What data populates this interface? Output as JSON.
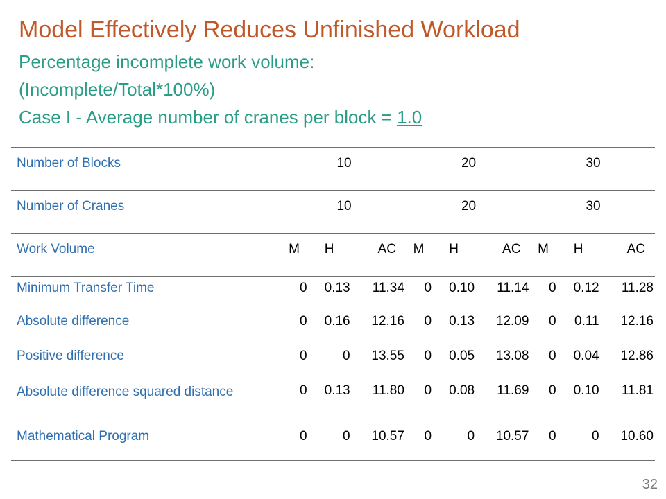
{
  "title": "Model Effectively Reduces Unfinished Workload",
  "subtitle_line1": "Percentage incomplete work volume:",
  "subtitle_line2": "(Incomplete/Total*100%)",
  "subtitle_line3_prefix": "Case I - Average number of cranes per block = ",
  "subtitle_line3_value": "1.0",
  "table": {
    "blocks_label": "Number of Blocks",
    "blocks": [
      "10",
      "20",
      "30"
    ],
    "cranes_label": "Number of Cranes",
    "cranes": [
      "10",
      "20",
      "30"
    ],
    "work_volume_label": "Work Volume",
    "work_volume_cols": [
      "M",
      "H",
      "AC",
      "M",
      "H",
      "AC",
      "M",
      "H",
      "AC"
    ],
    "rows": [
      {
        "label": "Minimum Transfer Time",
        "values": [
          "0",
          "0.13",
          "11.34",
          "0",
          "0.10",
          "11.14",
          "0",
          "0.12",
          "11.28"
        ]
      },
      {
        "label": "Absolute difference",
        "values": [
          "0",
          "0.16",
          "12.16",
          "0",
          "0.13",
          "12.09",
          "0",
          "0.11",
          "12.16"
        ]
      },
      {
        "label": "Positive difference",
        "values": [
          "0",
          "0",
          "13.55",
          "0",
          "0.05",
          "13.08",
          "0",
          "0.04",
          "12.86"
        ]
      },
      {
        "label": "Absolute difference squared distance",
        "values": [
          "0",
          "0.13",
          "11.80",
          "0",
          "0.08",
          "11.69",
          "0",
          "0.10",
          "11.81"
        ]
      },
      {
        "label": "Mathematical Program",
        "values": [
          "0",
          "0",
          "10.57",
          "0",
          "0",
          "10.57",
          "0",
          "0",
          "10.60"
        ]
      }
    ]
  },
  "page_number": "32",
  "colors": {
    "title": "#c0582a",
    "subtitle": "#2a9d87",
    "row_label": "#2f6fb0"
  }
}
